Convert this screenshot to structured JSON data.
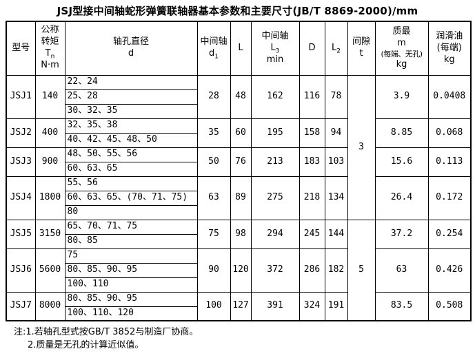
{
  "page": {
    "title": "JSJ型接中间轴蛇形弹簧联轴器基本参数和主要尺寸(JB/T 8869-2000)/mm"
  },
  "table": {
    "headers": {
      "model": "型号",
      "tn": {
        "l1": "公称",
        "l2": "转矩",
        "sym": "T",
        "sub": "n",
        "unit": "N·m"
      },
      "d": {
        "l1": "轴孔直径",
        "sym": "d"
      },
      "d1": {
        "l1": "中间轴",
        "sym": "d",
        "sub": "1"
      },
      "L": {
        "sym": "L"
      },
      "L3": {
        "l1": "中间轴",
        "sym": "L",
        "sub": "3",
        "l3": "min"
      },
      "D": {
        "sym": "D"
      },
      "L2": {
        "sym": "L",
        "sub": "2"
      },
      "t": {
        "l1": "间隙",
        "sym": "t"
      },
      "m": {
        "l1": "质最",
        "sym": "m",
        "l3": "(每端、无孔)",
        "unit": "kg"
      },
      "oil": {
        "l1": "润滑油",
        "l2": "(每端)",
        "unit": "kg"
      }
    },
    "groups": [
      {
        "model": "JSJ1",
        "tn": "140",
        "d_rows": [
          "22、24",
          "25、28",
          "30、32、35"
        ],
        "d1": "28",
        "L": "48",
        "L3": "162",
        "D": "116",
        "L2": "78",
        "m": "3.9",
        "oil": "0.0408"
      },
      {
        "model": "JSJ2",
        "tn": "400",
        "d_rows": [
          "32、35、38",
          "40、42、45、48、50"
        ],
        "d1": "35",
        "L": "60",
        "L3": "195",
        "D": "158",
        "L2": "94",
        "m": "8.85",
        "oil": "0.068"
      },
      {
        "model": "JSJ3",
        "tn": "900",
        "d_rows": [
          "48、50、55、56",
          "60、63、65"
        ],
        "d1": "50",
        "L": "76",
        "L3": "213",
        "D": "183",
        "L2": "103",
        "m": "15.6",
        "oil": "0.113"
      },
      {
        "model": "JSJ4",
        "tn": "1800",
        "d_rows": [
          "55、56",
          "60、63、65、(70、71、75)",
          "80"
        ],
        "d1": "63",
        "L": "89",
        "L3": "275",
        "D": "218",
        "L2": "134",
        "m": "26.4",
        "oil": "0.172"
      },
      {
        "model": "JSJ5",
        "tn": "3150",
        "d_rows": [
          "65、70、71、75",
          "80、85"
        ],
        "d1": "75",
        "L": "98",
        "L3": "294",
        "D": "245",
        "L2": "144",
        "m": "37.2",
        "oil": "0.254"
      },
      {
        "model": "JSJ6",
        "tn": "5600",
        "d_rows": [
          "75",
          "80、85、90、95",
          "100、110"
        ],
        "d1": "90",
        "L": "120",
        "L3": "372",
        "D": "286",
        "L2": "182",
        "m": "63",
        "oil": "0.426"
      },
      {
        "model": "JSJ7",
        "tn": "8000",
        "d_rows": [
          "80、85、90、95",
          "100、110、120"
        ],
        "d1": "100",
        "L": "127",
        "L3": "391",
        "D": "324",
        "L2": "191",
        "m": "83.5",
        "oil": "0.508"
      }
    ],
    "gap_spans": [
      {
        "value": "3",
        "from_group": 0,
        "to_group": 3
      },
      {
        "value": "5",
        "from_group": 4,
        "to_group": 6
      }
    ]
  },
  "notes": {
    "line1": "注:1.若轴孔型式按GB/T 3852与制造厂协商。",
    "line2": "2.质量是无孔的计算近似值。"
  },
  "colors": {
    "background": "#ffffff",
    "border": "#000000",
    "text": "#000000"
  }
}
